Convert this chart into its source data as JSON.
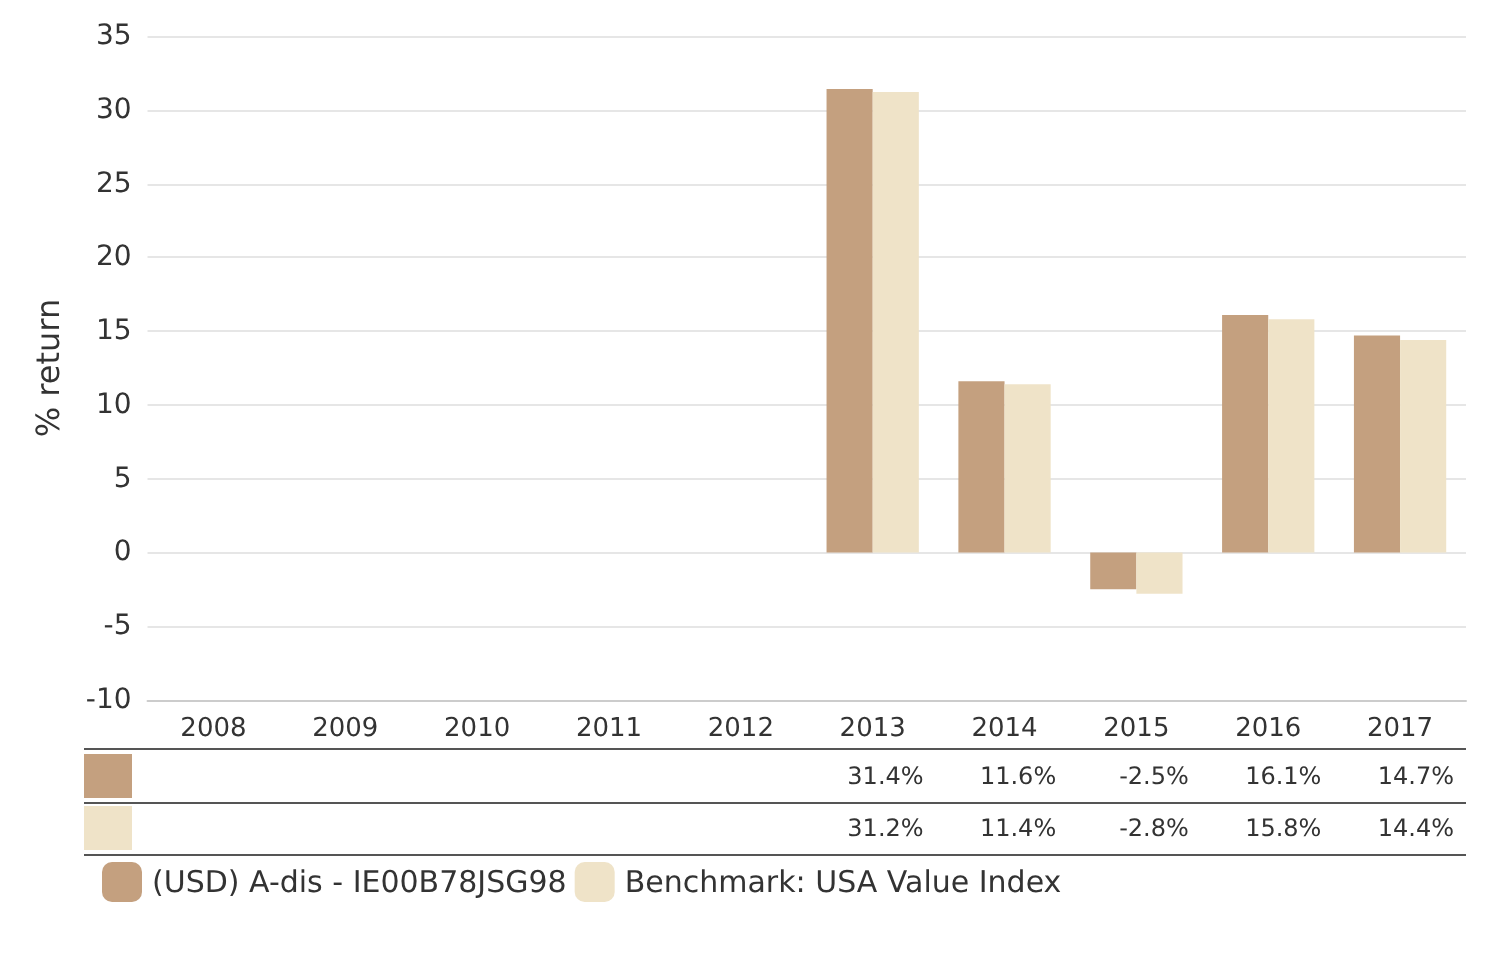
{
  "chart_data": {
    "type": "bar",
    "ylabel": "% return",
    "categories": [
      "2008",
      "2009",
      "2010",
      "2011",
      "2012",
      "2013",
      "2014",
      "2015",
      "2016",
      "2017"
    ],
    "series": [
      {
        "name": "(USD) A-dis - IE00B78JSG98",
        "color": "#c4a07f",
        "values": [
          null,
          null,
          null,
          null,
          null,
          31.4,
          11.6,
          -2.5,
          16.1,
          14.7
        ],
        "value_labels": [
          null,
          null,
          null,
          null,
          null,
          "31.4%",
          "11.6%",
          "-2.5%",
          "16.1%",
          "14.7%"
        ]
      },
      {
        "name": "Benchmark: USA Value Index",
        "color": "#efe3c8",
        "values": [
          null,
          null,
          null,
          null,
          null,
          31.2,
          11.4,
          -2.8,
          15.8,
          14.4
        ],
        "value_labels": [
          null,
          null,
          null,
          null,
          null,
          "31.2%",
          "11.4%",
          "-2.8%",
          "15.8%",
          "14.4%"
        ]
      }
    ],
    "ylim": [
      -10,
      35
    ],
    "yticks": [
      -10,
      -5,
      0,
      5,
      10,
      15,
      20,
      25,
      30,
      35
    ],
    "grid": "y",
    "legend": "bottom left"
  }
}
